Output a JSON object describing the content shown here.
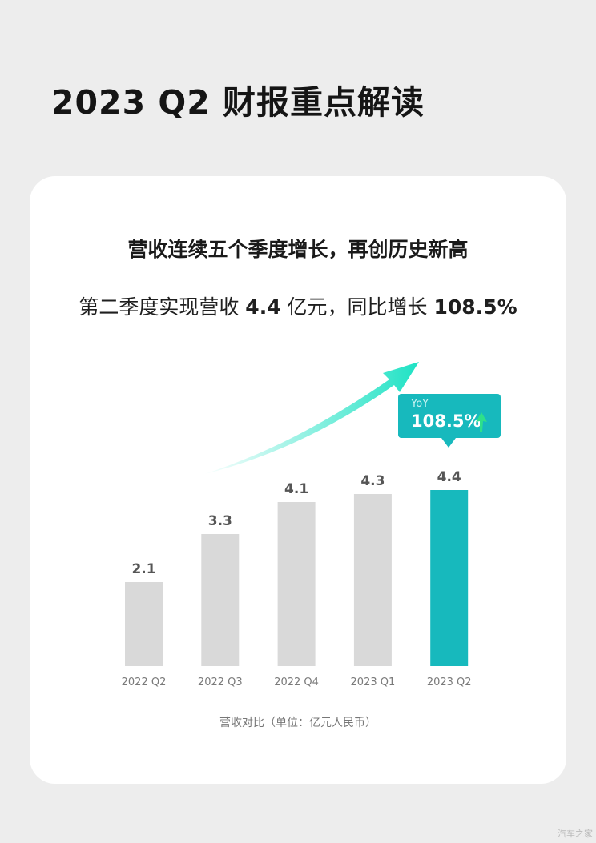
{
  "page": {
    "title": "2023 Q2 财报重点解读",
    "watermark": "汽车之家"
  },
  "headline": "营收连续五个季度增长，再创历史新高",
  "subline": {
    "prefix": "第二季度实现营收 ",
    "revenue": "4.4",
    "middle": " 亿元，同比增长 ",
    "growth": "108.5%"
  },
  "callout": {
    "label": "YoY",
    "value": "108.5%"
  },
  "chart_data": {
    "type": "bar",
    "categories": [
      "2022 Q2",
      "2022 Q3",
      "2022 Q4",
      "2023 Q1",
      "2023 Q2"
    ],
    "values": [
      2.1,
      3.3,
      4.1,
      4.3,
      4.4
    ],
    "value_labels": [
      "2.1",
      "3.3",
      "4.1",
      "4.3",
      "4.4"
    ],
    "highlight_index": 4,
    "title": "营收连续五个季度增长，再创历史新高",
    "caption": "营收对比（单位：亿元人民币）",
    "ylim": [
      0,
      4.4
    ],
    "grid": false,
    "colors": {
      "bar": "#d9d9d9",
      "highlight": "#17b9bd",
      "label": "#555555",
      "tick": "#7a7a7a",
      "trend_start": "#ffffff",
      "trend_end": "#1ee2c4",
      "up_arrow": "#2ee08a"
    }
  }
}
